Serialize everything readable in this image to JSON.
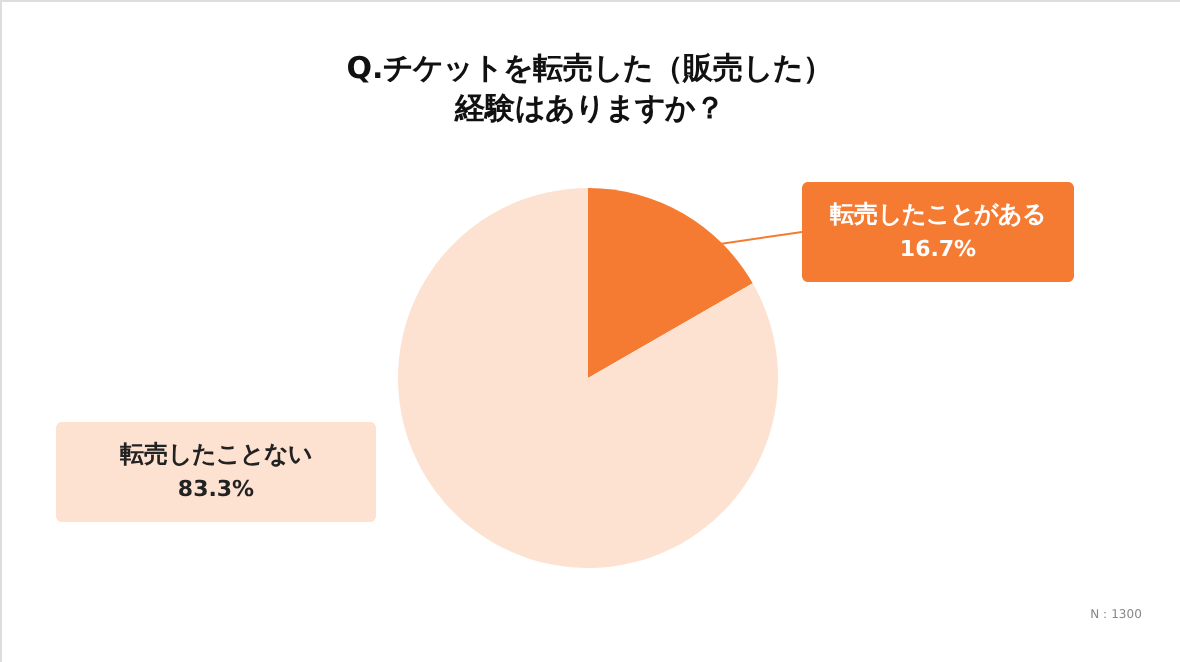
{
  "chart_data": {
    "type": "pie",
    "title": "Q.チケットを転売した（販売した）経験はありますか？",
    "categories": [
      "転売したことがある",
      "転売したことない"
    ],
    "values": [
      16.7,
      83.3
    ],
    "value_labels": [
      "16.7%",
      "83.3%"
    ],
    "colors": [
      "#f47b31",
      "#fde2d2"
    ],
    "annotations": [
      "N：1300"
    ]
  }
}
